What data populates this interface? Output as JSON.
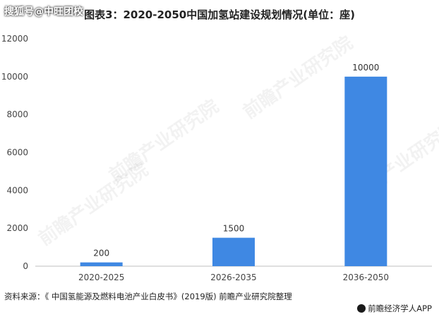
{
  "overlay_text": "搜狐号@中旺团校",
  "watermark": "前瞻产业研究院",
  "source": "资料来源：《 中国氢能源及燃料电池产业白皮书》(2019版) 前瞻产业研究院整理",
  "brand": "前瞻经济学人APP",
  "colors": {
    "bar": "#3f88e3",
    "axis": "#bfbfbf",
    "text": "#444444"
  },
  "chart_data": {
    "type": "bar",
    "title": "图表3：2020-2050中国加氢站建设规划情况(单位：座)",
    "categories": [
      "2020-2025",
      "2026-2035",
      "2036-2050"
    ],
    "values": [
      200,
      1500,
      10000
    ],
    "data_labels": [
      "200",
      "1500",
      "10000"
    ],
    "ylim": [
      0,
      12000
    ],
    "yticks": [
      0,
      2000,
      4000,
      6000,
      8000,
      10000,
      12000
    ],
    "xlabel": "",
    "ylabel": "",
    "grid": false,
    "legend": "none"
  }
}
